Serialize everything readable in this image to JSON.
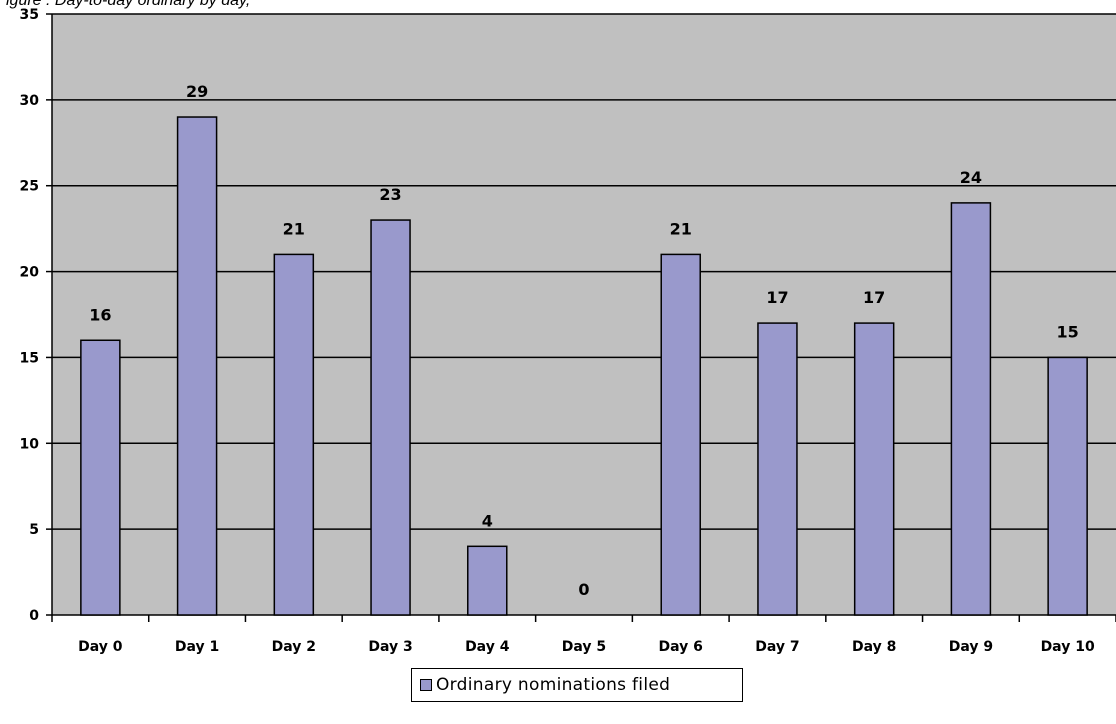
{
  "chart_data": {
    "type": "bar",
    "title": "igure       :  Day-to-day                  ordinary                   by day,",
    "categories": [
      "Day 0",
      "Day 1",
      "Day 2",
      "Day 3",
      "Day 4",
      "Day 5",
      "Day 6",
      "Day 7",
      "Day 8",
      "Day 9",
      "Day 10"
    ],
    "series": [
      {
        "name": "Ordinary nominations filed",
        "values": [
          16,
          29,
          21,
          23,
          4,
          0,
          21,
          17,
          17,
          24,
          15
        ],
        "color": "#9999cc"
      }
    ],
    "data_labels": [
      "16",
      "29",
      "21",
      "23",
      "4",
      "0",
      "21",
      "17",
      "17",
      "24",
      "15"
    ],
    "y_ticks": [
      "0",
      "5",
      "10",
      "15",
      "20",
      "25",
      "30",
      "35"
    ],
    "ylim": [
      0,
      35
    ],
    "xlabel": "",
    "ylabel": "",
    "grid": true,
    "legend_position": "bottom",
    "plot_background": "#c0c0c0",
    "bar_border_color": "#000000",
    "gridline_color": "#000000"
  }
}
